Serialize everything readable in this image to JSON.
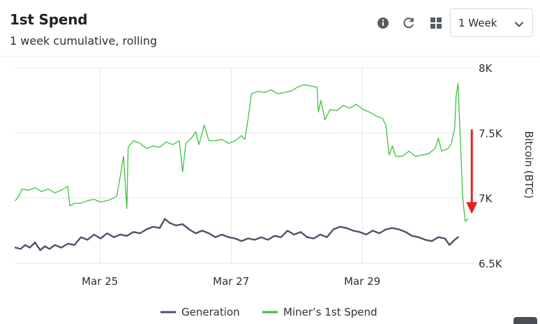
{
  "header": {
    "title": "1st Spend",
    "subtitle": "1 week cumulative, rolling"
  },
  "toolbar": {
    "info_icon": "info-icon",
    "refresh_icon": "refresh-icon",
    "grid_icon": "grid-icon",
    "range_value": "1 Week",
    "range_icon": "chevron-down-icon"
  },
  "colors": {
    "generation": "#4a5468",
    "spend": "#35c235",
    "arrow": "#ea1f1f",
    "grid": "#e2e5ea"
  },
  "chart_data": {
    "type": "line",
    "title": "",
    "xlabel": "",
    "ylabel": "Bitcoin (BTC)",
    "ylim": [
      6500,
      8000
    ],
    "xlim": [
      0,
      7
    ],
    "yticks": [
      {
        "value": 8000,
        "label": "8K"
      },
      {
        "value": 7500,
        "label": "7.5K"
      },
      {
        "value": 7000,
        "label": "7K"
      },
      {
        "value": 6500,
        "label": "6.5K"
      }
    ],
    "xticks": [
      {
        "value": 1.29,
        "label": "Mar 25"
      },
      {
        "value": 3.29,
        "label": "Mar 27"
      },
      {
        "value": 5.29,
        "label": "Mar 29"
      }
    ],
    "legend": {
      "placement": "bottom-center",
      "items": [
        {
          "label": "Generation"
        },
        {
          "label": "Miner’s 1st Spend"
        }
      ]
    },
    "series": [
      {
        "name": "Generation",
        "values": [
          [
            0.0,
            6620
          ],
          [
            0.08,
            6610
          ],
          [
            0.15,
            6640
          ],
          [
            0.22,
            6620
          ],
          [
            0.3,
            6660
          ],
          [
            0.38,
            6600
          ],
          [
            0.45,
            6630
          ],
          [
            0.52,
            6610
          ],
          [
            0.6,
            6640
          ],
          [
            0.7,
            6620
          ],
          [
            0.8,
            6650
          ],
          [
            0.9,
            6640
          ],
          [
            1.0,
            6700
          ],
          [
            1.1,
            6680
          ],
          [
            1.2,
            6720
          ],
          [
            1.3,
            6690
          ],
          [
            1.4,
            6730
          ],
          [
            1.5,
            6700
          ],
          [
            1.6,
            6720
          ],
          [
            1.7,
            6710
          ],
          [
            1.8,
            6740
          ],
          [
            1.9,
            6730
          ],
          [
            2.0,
            6760
          ],
          [
            2.1,
            6780
          ],
          [
            2.2,
            6770
          ],
          [
            2.28,
            6840
          ],
          [
            2.35,
            6810
          ],
          [
            2.45,
            6790
          ],
          [
            2.55,
            6800
          ],
          [
            2.65,
            6760
          ],
          [
            2.75,
            6730
          ],
          [
            2.85,
            6750
          ],
          [
            2.95,
            6730
          ],
          [
            3.05,
            6700
          ],
          [
            3.15,
            6720
          ],
          [
            3.25,
            6700
          ],
          [
            3.35,
            6690
          ],
          [
            3.45,
            6670
          ],
          [
            3.55,
            6690
          ],
          [
            3.65,
            6680
          ],
          [
            3.75,
            6700
          ],
          [
            3.85,
            6680
          ],
          [
            3.95,
            6710
          ],
          [
            4.05,
            6700
          ],
          [
            4.15,
            6750
          ],
          [
            4.25,
            6720
          ],
          [
            4.35,
            6740
          ],
          [
            4.45,
            6700
          ],
          [
            4.55,
            6690
          ],
          [
            4.65,
            6720
          ],
          [
            4.75,
            6700
          ],
          [
            4.85,
            6760
          ],
          [
            4.95,
            6780
          ],
          [
            5.05,
            6770
          ],
          [
            5.15,
            6750
          ],
          [
            5.25,
            6740
          ],
          [
            5.35,
            6720
          ],
          [
            5.45,
            6750
          ],
          [
            5.55,
            6730
          ],
          [
            5.65,
            6760
          ],
          [
            5.75,
            6770
          ],
          [
            5.85,
            6760
          ],
          [
            5.95,
            6740
          ],
          [
            6.05,
            6710
          ],
          [
            6.15,
            6700
          ],
          [
            6.25,
            6680
          ],
          [
            6.35,
            6670
          ],
          [
            6.45,
            6700
          ],
          [
            6.55,
            6690
          ],
          [
            6.62,
            6640
          ],
          [
            6.7,
            6680
          ],
          [
            6.75,
            6700
          ]
        ]
      },
      {
        "name": "Miner’s 1st Spend",
        "values": [
          [
            0.0,
            6980
          ],
          [
            0.06,
            7020
          ],
          [
            0.1,
            7070
          ],
          [
            0.2,
            7060
          ],
          [
            0.3,
            7080
          ],
          [
            0.4,
            7050
          ],
          [
            0.5,
            7070
          ],
          [
            0.6,
            7040
          ],
          [
            0.7,
            7060
          ],
          [
            0.8,
            7090
          ],
          [
            0.83,
            6940
          ],
          [
            0.9,
            6960
          ],
          [
            1.0,
            6960
          ],
          [
            1.1,
            6980
          ],
          [
            1.2,
            6990
          ],
          [
            1.3,
            6970
          ],
          [
            1.4,
            6980
          ],
          [
            1.5,
            7000
          ],
          [
            1.55,
            7020
          ],
          [
            1.6,
            7170
          ],
          [
            1.65,
            7320
          ],
          [
            1.7,
            6920
          ],
          [
            1.72,
            7390
          ],
          [
            1.8,
            7440
          ],
          [
            1.9,
            7420
          ],
          [
            2.0,
            7380
          ],
          [
            2.1,
            7400
          ],
          [
            2.2,
            7390
          ],
          [
            2.3,
            7430
          ],
          [
            2.4,
            7410
          ],
          [
            2.5,
            7440
          ],
          [
            2.55,
            7200
          ],
          [
            2.6,
            7420
          ],
          [
            2.7,
            7470
          ],
          [
            2.75,
            7510
          ],
          [
            2.8,
            7410
          ],
          [
            2.88,
            7560
          ],
          [
            2.95,
            7440
          ],
          [
            3.05,
            7440
          ],
          [
            3.15,
            7450
          ],
          [
            3.25,
            7420
          ],
          [
            3.35,
            7440
          ],
          [
            3.45,
            7480
          ],
          [
            3.5,
            7450
          ],
          [
            3.55,
            7610
          ],
          [
            3.6,
            7800
          ],
          [
            3.7,
            7820
          ],
          [
            3.8,
            7810
          ],
          [
            3.9,
            7830
          ],
          [
            4.0,
            7800
          ],
          [
            4.1,
            7810
          ],
          [
            4.2,
            7820
          ],
          [
            4.3,
            7850
          ],
          [
            4.4,
            7870
          ],
          [
            4.5,
            7860
          ],
          [
            4.6,
            7850
          ],
          [
            4.62,
            7660
          ],
          [
            4.66,
            7750
          ],
          [
            4.72,
            7600
          ],
          [
            4.8,
            7680
          ],
          [
            4.9,
            7670
          ],
          [
            5.0,
            7710
          ],
          [
            5.1,
            7690
          ],
          [
            5.2,
            7720
          ],
          [
            5.3,
            7680
          ],
          [
            5.4,
            7660
          ],
          [
            5.5,
            7630
          ],
          [
            5.6,
            7610
          ],
          [
            5.65,
            7560
          ],
          [
            5.7,
            7330
          ],
          [
            5.75,
            7400
          ],
          [
            5.8,
            7320
          ],
          [
            5.9,
            7320
          ],
          [
            6.0,
            7360
          ],
          [
            6.1,
            7320
          ],
          [
            6.2,
            7330
          ],
          [
            6.3,
            7340
          ],
          [
            6.4,
            7380
          ],
          [
            6.45,
            7460
          ],
          [
            6.5,
            7360
          ],
          [
            6.6,
            7380
          ],
          [
            6.65,
            7420
          ],
          [
            6.7,
            7540
          ],
          [
            6.72,
            7780
          ],
          [
            6.75,
            7880
          ],
          [
            6.79,
            7390
          ],
          [
            6.82,
            7010
          ],
          [
            6.86,
            6820
          ],
          [
            6.9,
            6840
          ]
        ]
      }
    ],
    "annotations": [
      {
        "type": "arrow",
        "x": 6.96,
        "y_from": 7520,
        "y_to": 6910
      }
    ]
  }
}
